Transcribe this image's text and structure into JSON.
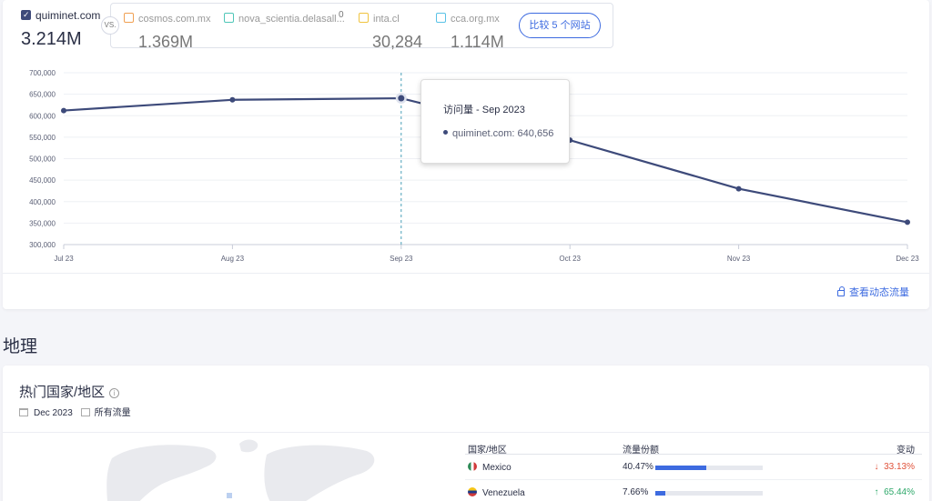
{
  "traffic": {
    "main_site": {
      "name": "quiminet.com",
      "value": "3.214M"
    },
    "vs_label": "VS.",
    "competitors": [
      {
        "name": "cosmos.com.mx",
        "value": "1.369M",
        "color": "#f0a052"
      },
      {
        "name": "nova_scientia.delasall...",
        "value": "",
        "extra": "0",
        "color": "#4fc6b8"
      },
      {
        "name": "inta.cl",
        "value": "30,284",
        "color": "#f0c440"
      },
      {
        "name": "cca.org.mx",
        "value": "1.114M",
        "color": "#59c2e6"
      }
    ],
    "compare_button": "比较 5 个网站",
    "tooltip": {
      "title": "访问量 - Sep 2023",
      "series": "quiminet.com",
      "value": "640,656"
    },
    "dynamic_link": "查看动态流量"
  },
  "chart_data": {
    "type": "line",
    "categories": [
      "Jul 23",
      "Aug 23",
      "Sep 23",
      "Oct 23",
      "Nov 23",
      "Dec 23"
    ],
    "series": [
      {
        "name": "quiminet.com",
        "values": [
          612000,
          637000,
          640656,
          543000,
          430000,
          352000
        ],
        "color": "#3d4a7a"
      }
    ],
    "yticks": [
      700000,
      650000,
      600000,
      550000,
      500000,
      450000,
      400000,
      350000,
      300000
    ],
    "ytick_labels": [
      "700,000",
      "650,000",
      "600,000",
      "550,000",
      "500,000",
      "450,000",
      "400,000",
      "350,000",
      "300,000"
    ],
    "ylim": [
      300000,
      700000
    ],
    "highlight_index": 2,
    "grid": true
  },
  "geo": {
    "heading": "地理",
    "card_title": "热门国家/地区",
    "date": "Dec 2023",
    "traffic_type": "所有流量",
    "table": {
      "headers": [
        "国家/地区",
        "流量份额",
        "变动"
      ],
      "rows": [
        {
          "country": "Mexico",
          "flag": "mx",
          "share": "40.47%",
          "share_value": 40.47,
          "change": "33.13%",
          "direction": "down"
        },
        {
          "country": "Venezuela",
          "flag": "ve",
          "share": "7.66%",
          "share_value": 7.66,
          "change": "65.44%",
          "direction": "up"
        }
      ]
    }
  }
}
